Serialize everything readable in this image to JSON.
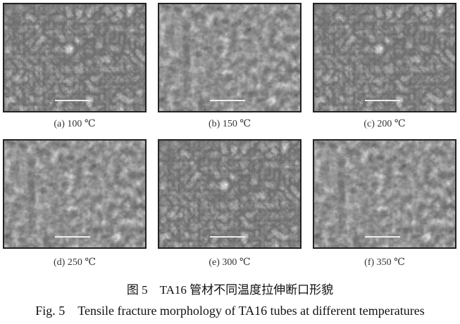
{
  "figure": {
    "panels": [
      {
        "label": "(a) 100 ℃"
      },
      {
        "label": "(b) 150 ℃"
      },
      {
        "label": "(c) 200 ℃"
      },
      {
        "label": "(d) 250 ℃"
      },
      {
        "label": "(e) 300 ℃"
      },
      {
        "label": "(f) 350 ℃"
      }
    ],
    "caption_cn": "图 5　TA16 管材不同温度拉伸断口形貌",
    "caption_en": "Fig. 5　Tensile fracture morphology of TA16 tubes at different temperatures"
  }
}
